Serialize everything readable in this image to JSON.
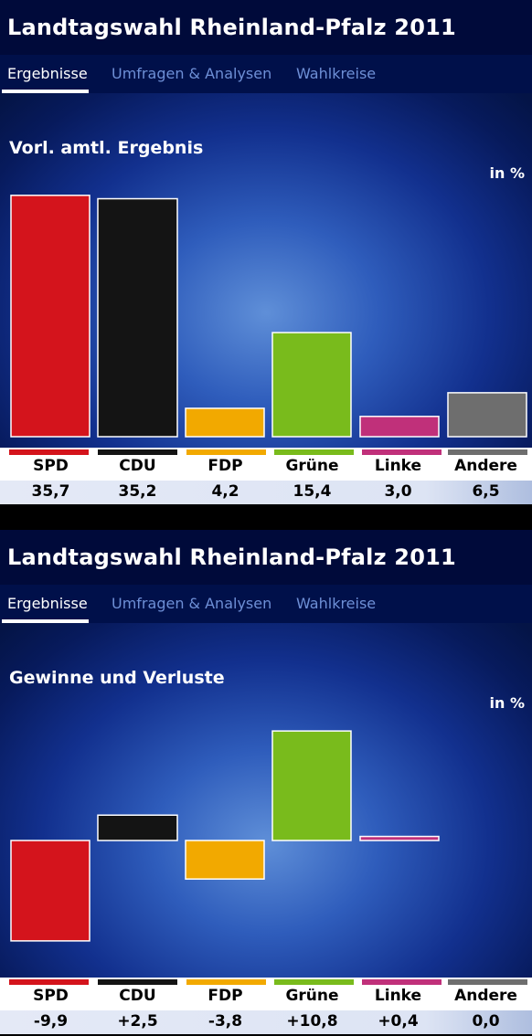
{
  "panels": [
    {
      "header_title": "Landtagswahl Rheinland-Pfalz 2011",
      "tabs": [
        "Ergebnisse",
        "Umfragen & Analysen",
        "Wahlkreise"
      ],
      "subtitle": "Vorl. amtl. Ergebnis",
      "unit": "in %",
      "rows": [
        {
          "party": "SPD",
          "value": "35,7"
        },
        {
          "party": "CDU",
          "value": "35,2"
        },
        {
          "party": "FDP",
          "value": "4,2"
        },
        {
          "party": "Grüne",
          "value": "15,4"
        },
        {
          "party": "Linke",
          "value": "3,0"
        },
        {
          "party": "Andere",
          "value": "6,5"
        }
      ]
    },
    {
      "header_title": "Landtagswahl Rheinland-Pfalz 2011",
      "tabs": [
        "Ergebnisse",
        "Umfragen & Analysen",
        "Wahlkreise"
      ],
      "subtitle": "Gewinne und Verluste",
      "unit": "in %",
      "rows": [
        {
          "party": "SPD",
          "value": "-9,9"
        },
        {
          "party": "CDU",
          "value": "+2,5"
        },
        {
          "party": "FDP",
          "value": "-3,8"
        },
        {
          "party": "Grüne",
          "value": "+10,8"
        },
        {
          "party": "Linke",
          "value": "+0,4"
        },
        {
          "party": "Andere",
          "value": "0,0"
        }
      ]
    }
  ],
  "chart_data": [
    {
      "type": "bar",
      "title": "Vorl. amtl. Ergebnis",
      "ylabel": "in %",
      "categories": [
        "SPD",
        "CDU",
        "FDP",
        "Grüne",
        "Linke",
        "Andere"
      ],
      "values": [
        35.7,
        35.2,
        4.2,
        15.4,
        3.0,
        6.5
      ],
      "colors": [
        "#d4141c",
        "#141414",
        "#f2a900",
        "#79bb1c",
        "#c0307a",
        "#6e6e6e"
      ]
    },
    {
      "type": "bar",
      "title": "Gewinne und Verluste",
      "ylabel": "in %",
      "categories": [
        "SPD",
        "CDU",
        "FDP",
        "Grüne",
        "Linke",
        "Andere"
      ],
      "values": [
        -9.9,
        2.5,
        -3.8,
        10.8,
        0.4,
        0.0
      ],
      "colors": [
        "#d4141c",
        "#141414",
        "#f2a900",
        "#79bb1c",
        "#c0307a",
        "#6e6e6e"
      ]
    }
  ]
}
